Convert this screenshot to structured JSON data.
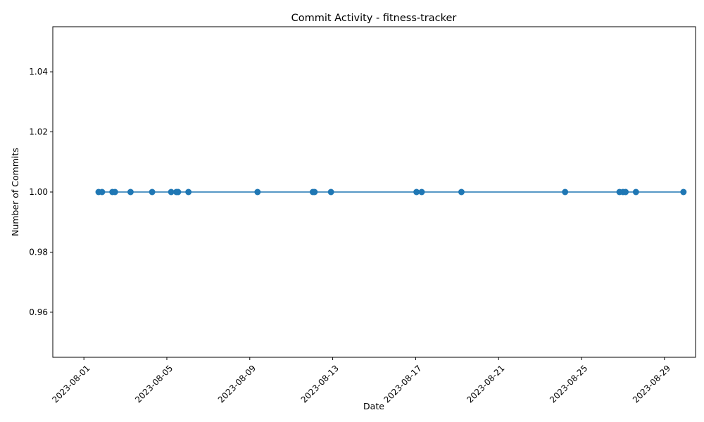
{
  "chart_data": {
    "type": "line",
    "title": "Commit Activity - fitness-tracker",
    "xlabel": "Date",
    "ylabel": "Number of Commits",
    "x_axis_type": "date",
    "xlim": [
      "2023-07-30T12:00",
      "2023-08-30T12:00"
    ],
    "ylim": [
      0.945,
      1.055
    ],
    "x_ticks": [
      "2023-08-01",
      "2023-08-05",
      "2023-08-09",
      "2023-08-13",
      "2023-08-17",
      "2023-08-21",
      "2023-08-25",
      "2023-08-29"
    ],
    "y_ticks": [
      "0.96",
      "0.98",
      "1.00",
      "1.02",
      "1.04"
    ],
    "grid": false,
    "legend": "none",
    "series": [
      {
        "color": "#1f77b4",
        "marker": "circle",
        "points": [
          {
            "x": "2023-08-01T17:00",
            "y": 1
          },
          {
            "x": "2023-08-01T21:00",
            "y": 1
          },
          {
            "x": "2023-08-02T09:00",
            "y": 1
          },
          {
            "x": "2023-08-02T12:00",
            "y": 1
          },
          {
            "x": "2023-08-03T06:00",
            "y": 1
          },
          {
            "x": "2023-08-04T07:00",
            "y": 1
          },
          {
            "x": "2023-08-05T05:00",
            "y": 1
          },
          {
            "x": "2023-08-05T11:00",
            "y": 1
          },
          {
            "x": "2023-08-05T13:00",
            "y": 1
          },
          {
            "x": "2023-08-06T01:00",
            "y": 1
          },
          {
            "x": "2023-08-09T09:00",
            "y": 1
          },
          {
            "x": "2023-08-12T01:00",
            "y": 1
          },
          {
            "x": "2023-08-12T03:00",
            "y": 1
          },
          {
            "x": "2023-08-12T22:00",
            "y": 1
          },
          {
            "x": "2023-08-17T01:00",
            "y": 1
          },
          {
            "x": "2023-08-17T07:00",
            "y": 1
          },
          {
            "x": "2023-08-19T05:00",
            "y": 1
          },
          {
            "x": "2023-08-24T05:00",
            "y": 1
          },
          {
            "x": "2023-08-26T20:00",
            "y": 1
          },
          {
            "x": "2023-08-27T00:00",
            "y": 1
          },
          {
            "x": "2023-08-27T03:00",
            "y": 1
          },
          {
            "x": "2023-08-27T15:00",
            "y": 1
          },
          {
            "x": "2023-08-29T22:00",
            "y": 1
          }
        ]
      }
    ]
  }
}
